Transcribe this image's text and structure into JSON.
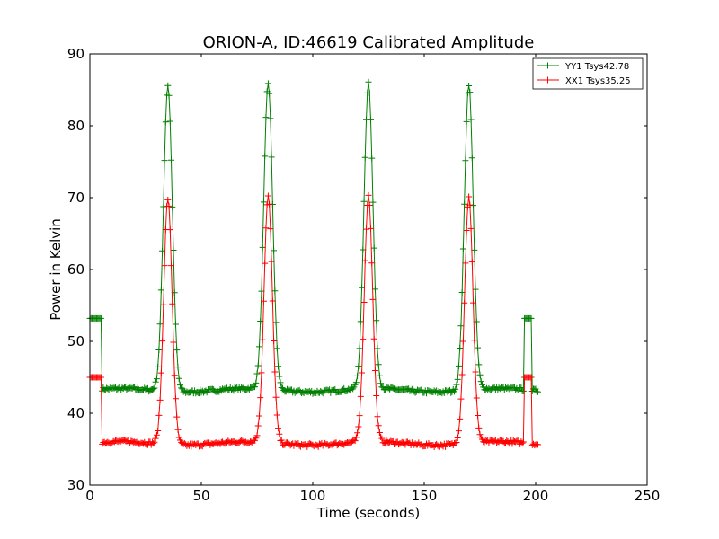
{
  "chart_data": {
    "type": "line",
    "title": "ORION-A, ID:46619 Calibrated Amplitude",
    "xlabel": "Time (seconds)",
    "ylabel": "Power in Kelvin",
    "xlim": [
      0,
      250
    ],
    "ylim": [
      30,
      90
    ],
    "xticks": [
      0,
      50,
      100,
      150,
      200,
      250
    ],
    "yticks": [
      30,
      40,
      50,
      60,
      70,
      80,
      90
    ],
    "grid": false,
    "legend_position": "top-right",
    "marker": "+",
    "series": [
      {
        "name": "YY1 Tsys42.78",
        "color": "#008000",
        "baseline": 43.2,
        "peak": 85.8,
        "peak_centers": [
          35,
          80,
          125,
          170
        ],
        "peak_sigma": 2.0,
        "pre_level": 53.2,
        "post_level": 53.2,
        "x_start": 0,
        "x_end": 201,
        "sample_interval": 0.5,
        "points": [
          [
            0,
            53.2
          ],
          [
            5,
            53.2
          ],
          [
            5.5,
            43.2
          ],
          [
            33,
            80
          ],
          [
            35,
            85.8
          ],
          [
            37,
            80
          ],
          [
            40,
            43.3
          ],
          [
            78,
            80
          ],
          [
            80,
            85.8
          ],
          [
            82,
            80
          ],
          [
            85,
            43.2
          ],
          [
            123,
            80
          ],
          [
            125,
            85.8
          ],
          [
            127,
            80
          ],
          [
            130,
            43.2
          ],
          [
            168,
            80
          ],
          [
            170,
            85.8
          ],
          [
            172,
            80
          ],
          [
            175,
            43.3
          ],
          [
            194.5,
            43.2
          ],
          [
            195,
            53.2
          ],
          [
            198,
            53.2
          ],
          [
            198.5,
            43.2
          ],
          [
            201,
            43.2
          ]
        ]
      },
      {
        "name": "XX1 Tsys35.25",
        "color": "#ff0000",
        "baseline": 35.8,
        "peak": 70.0,
        "peak_centers": [
          35,
          80,
          125,
          170
        ],
        "peak_sigma": 1.9,
        "pre_level": 45.0,
        "post_level": 45.0,
        "x_start": 0,
        "x_end": 201,
        "sample_interval": 0.5,
        "points": [
          [
            0,
            45.0
          ],
          [
            5,
            45.0
          ],
          [
            5.5,
            35.8
          ],
          [
            33,
            60
          ],
          [
            35,
            70.0
          ],
          [
            37,
            60
          ],
          [
            40,
            36.0
          ],
          [
            78,
            60
          ],
          [
            80,
            70.0
          ],
          [
            82,
            60
          ],
          [
            85,
            35.8
          ],
          [
            123,
            60
          ],
          [
            125,
            70.0
          ],
          [
            127,
            60
          ],
          [
            130,
            35.8
          ],
          [
            168,
            60
          ],
          [
            170,
            70.0
          ],
          [
            172,
            60
          ],
          [
            175,
            35.8
          ],
          [
            194.5,
            35.8
          ],
          [
            195,
            45.0
          ],
          [
            198,
            45.0
          ],
          [
            198.5,
            35.8
          ],
          [
            201,
            35.8
          ]
        ]
      }
    ]
  }
}
